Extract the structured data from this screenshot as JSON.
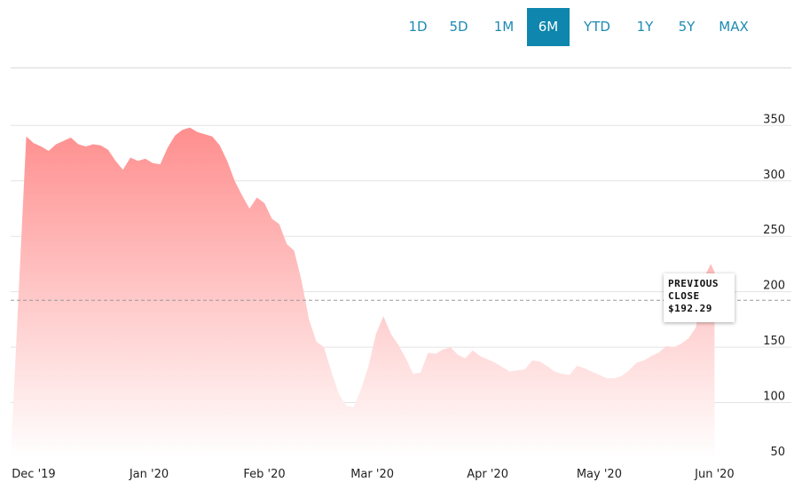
{
  "range_tabs": [
    {
      "label": "1D",
      "active": false
    },
    {
      "label": "5D",
      "active": false
    },
    {
      "label": "1M",
      "active": false
    },
    {
      "label": "6M",
      "active": true
    },
    {
      "label": "YTD",
      "active": false
    },
    {
      "label": "1Y",
      "active": false
    },
    {
      "label": "5Y",
      "active": false
    },
    {
      "label": "MAX",
      "active": false
    }
  ],
  "tooltip": {
    "line1": "PREVIOUS",
    "line2": "CLOSE",
    "value": "$192.29"
  },
  "colors": {
    "accent": "#0e86ad",
    "area_top": "#ff8e8e",
    "area_bottom": "#ffffff",
    "reference_line": "#999999"
  },
  "chart_data": {
    "type": "area",
    "title": "",
    "xlabel": "",
    "ylabel": "",
    "ylim": [
      50,
      360
    ],
    "y_ticks": [
      50,
      100,
      150,
      200,
      250,
      300,
      350
    ],
    "x_ticks": [
      {
        "label": "Dec '19",
        "date": "2019-12-01"
      },
      {
        "label": "Jan '20",
        "date": "2020-01-01"
      },
      {
        "label": "Feb '20",
        "date": "2020-02-01"
      },
      {
        "label": "Mar '20",
        "date": "2020-03-01"
      },
      {
        "label": "Apr '20",
        "date": "2020-04-01"
      },
      {
        "label": "May '20",
        "date": "2020-05-01"
      },
      {
        "label": "Jun '20",
        "date": "2020-06-01"
      }
    ],
    "reference_line": {
      "label": "PREVIOUS CLOSE",
      "value": 192.29
    },
    "series": [
      {
        "x": [
          "2019-11-29",
          "2019-12-01",
          "2019-12-03",
          "2019-12-05",
          "2019-12-07",
          "2019-12-09",
          "2019-12-11",
          "2019-12-13",
          "2019-12-15",
          "2019-12-17",
          "2019-12-19",
          "2019-12-21",
          "2019-12-23",
          "2019-12-25",
          "2019-12-27",
          "2019-12-29",
          "2019-12-31",
          "2020-01-02",
          "2020-01-04",
          "2020-01-06",
          "2020-01-08",
          "2020-01-10",
          "2020-01-12",
          "2020-01-14",
          "2020-01-16",
          "2020-01-18",
          "2020-01-20",
          "2020-01-22",
          "2020-01-24",
          "2020-01-26",
          "2020-01-28",
          "2020-01-30",
          "2020-02-01",
          "2020-02-03",
          "2020-02-05",
          "2020-02-07",
          "2020-02-09",
          "2020-02-11",
          "2020-02-13",
          "2020-02-15",
          "2020-02-17",
          "2020-02-19",
          "2020-02-21",
          "2020-02-23",
          "2020-02-25",
          "2020-02-27",
          "2020-02-29",
          "2020-03-02",
          "2020-03-04",
          "2020-03-06",
          "2020-03-08",
          "2020-03-10",
          "2020-03-12",
          "2020-03-14",
          "2020-03-16",
          "2020-03-18",
          "2020-03-20",
          "2020-03-22",
          "2020-03-24",
          "2020-03-26",
          "2020-03-28",
          "2020-03-30",
          "2020-04-01",
          "2020-04-03",
          "2020-04-05",
          "2020-04-07",
          "2020-04-09",
          "2020-04-11",
          "2020-04-13",
          "2020-04-15",
          "2020-04-17",
          "2020-04-19",
          "2020-04-21",
          "2020-04-23",
          "2020-04-25",
          "2020-04-27",
          "2020-04-29",
          "2020-05-01",
          "2020-05-03",
          "2020-05-05",
          "2020-05-07",
          "2020-05-09",
          "2020-05-11",
          "2020-05-13",
          "2020-05-15",
          "2020-05-17",
          "2020-05-19",
          "2020-05-21",
          "2020-05-23",
          "2020-05-25",
          "2020-05-27",
          "2020-05-29",
          "2020-05-31",
          "2020-06-01"
        ],
        "y": [
          340,
          334,
          331,
          327,
          333,
          336,
          339,
          333,
          331,
          333,
          332,
          328,
          318,
          310,
          321,
          318,
          320,
          316,
          315,
          330,
          341,
          346,
          348,
          344,
          342,
          340,
          332,
          318,
          300,
          287,
          275,
          285,
          280,
          266,
          261,
          243,
          237,
          210,
          175,
          155,
          150,
          128,
          108,
          97,
          96,
          112,
          133,
          162,
          178,
          162,
          152,
          140,
          126,
          127,
          145,
          144,
          148,
          150,
          143,
          140,
          147,
          142,
          139,
          136,
          132,
          128,
          129,
          130,
          138,
          137,
          133,
          128,
          126,
          125,
          133,
          131,
          128,
          125,
          122,
          122,
          124,
          129,
          136,
          138,
          142,
          145,
          151,
          150,
          153,
          158,
          168,
          212,
          225,
          218
        ]
      }
    ]
  }
}
